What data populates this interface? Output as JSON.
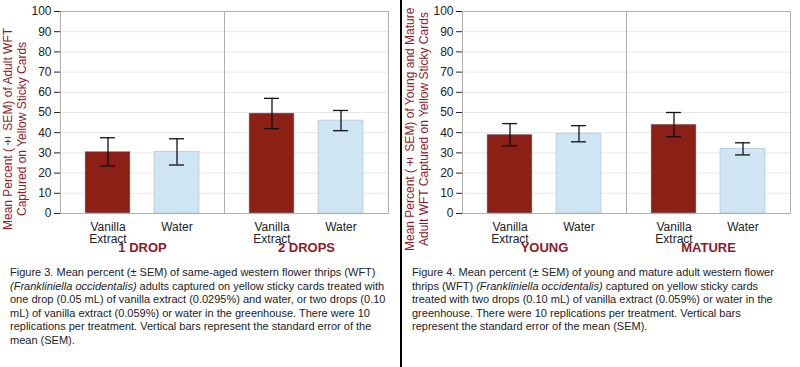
{
  "chart_data": [
    {
      "type": "bar",
      "y_label": "Mean Percent (± SEM) of Adult WFT Captured on Yellow Sticky Cards",
      "categories": [
        "1 DROP",
        "2 DROPS"
      ],
      "series": [
        {
          "name": "Vanilla Extract",
          "color": "#8c1f16",
          "values": [
            30.5,
            49.5
          ],
          "sem": [
            7,
            7.5
          ]
        },
        {
          "name": "Water",
          "color": "#cfe5f3",
          "values": [
            30.5,
            46
          ],
          "sem": [
            6.5,
            5
          ]
        }
      ],
      "ylim": [
        0,
        100
      ],
      "yticks": [
        0,
        10,
        20,
        30,
        40,
        50,
        60,
        70,
        80,
        90,
        100
      ],
      "grid": true,
      "caption": [
        "Figure 3. Mean percent (± SEM) of same-aged western flower thrips (WFT) ",
        "(Frankliniella occidentalis)",
        " adults captured on yellow sticky cards treated with one drop  (0.05 mL) of vanilla extract (0.0295%) and water, or two drops (0.10 mL) of vanilla extract (0.059%) or water in the greenhouse. There were 10 replications per treatment. Vertical bars represent the standard error of the mean (SEM)."
      ]
    },
    {
      "type": "bar",
      "y_label": "Mean Percent (± SEM) of Young and Mature Adult WFT Captured on Yellow Sticky Cards",
      "categories": [
        "YOUNG",
        "MATURE"
      ],
      "series": [
        {
          "name": "Vanilla Extract",
          "color": "#8c1f16",
          "values": [
            39,
            44
          ],
          "sem": [
            5.5,
            6
          ]
        },
        {
          "name": "Water",
          "color": "#cfe5f3",
          "values": [
            39.5,
            32
          ],
          "sem": [
            4,
            3
          ]
        }
      ],
      "ylim": [
        0,
        100
      ],
      "yticks": [
        0,
        10,
        20,
        30,
        40,
        50,
        60,
        70,
        80,
        90,
        100
      ],
      "grid": true,
      "caption": [
        "Figure 4. Mean percent (± SEM) of young and mature adult western flower thrips (WFT) ",
        "(Frankliniella occidentalis)",
        " captured on yellow sticky cards treated with two drops (0.10 mL) of vanilla extract (0.059%) or water in the greenhouse. There were 10 replications per treatment. Vertical bars represent the standard error of the mean (SEM)."
      ]
    }
  ]
}
